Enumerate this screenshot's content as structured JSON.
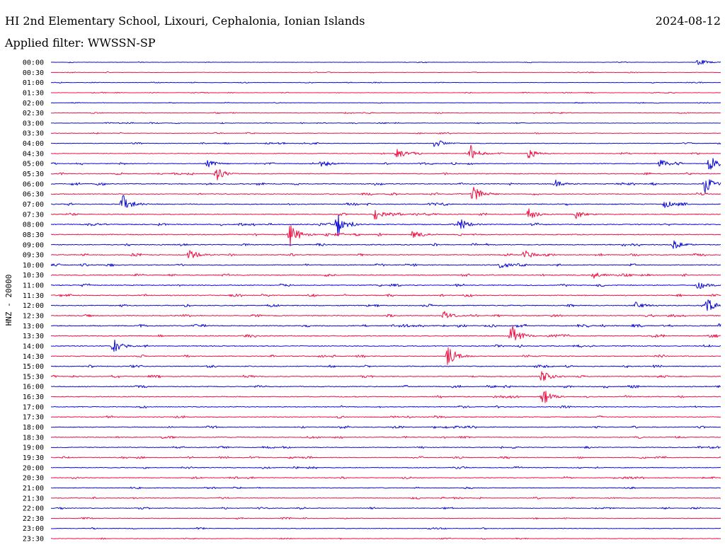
{
  "header": {
    "station": "HI 2nd Elementary School, Lixouri, Cephalonia, Ionian Islands",
    "date": "2024-08-12",
    "filter": "Applied filter: WWSSN-SP"
  },
  "colors": {
    "trace_a": "#0b0bd4",
    "trace_b": "#ee1144",
    "text": "#000000",
    "background": "#ffffff"
  },
  "chart_data": {
    "type": "helicorder",
    "channel_label": "HNZ - 20000",
    "row_interval_minutes": 30,
    "rows": [
      "00:00",
      "00:30",
      "01:00",
      "01:30",
      "02:00",
      "02:30",
      "03:00",
      "03:30",
      "04:00",
      "04:30",
      "05:00",
      "05:30",
      "06:00",
      "06:30",
      "07:00",
      "07:30",
      "08:00",
      "08:30",
      "09:00",
      "09:30",
      "10:00",
      "10:30",
      "11:00",
      "11:30",
      "12:00",
      "12:30",
      "13:00",
      "13:30",
      "14:00",
      "14:30",
      "15:00",
      "15:30",
      "16:00",
      "16:30",
      "17:00",
      "17:30",
      "18:00",
      "18:30",
      "19:00",
      "19:30",
      "20:00",
      "20:30",
      "21:00",
      "21:30",
      "22:00",
      "22:30",
      "23:00",
      "23:30"
    ],
    "series_colors": [
      "#0b0bd4",
      "#ee1144"
    ],
    "noise_level": [
      0.25,
      0.25,
      0.25,
      0.25,
      0.25,
      0.3,
      0.3,
      0.35,
      0.4,
      0.45,
      0.5,
      0.55,
      0.6,
      0.55,
      0.6,
      0.6,
      0.65,
      0.65,
      0.6,
      0.6,
      0.6,
      0.6,
      0.6,
      0.6,
      0.6,
      0.6,
      0.65,
      0.65,
      0.6,
      0.6,
      0.6,
      0.6,
      0.6,
      0.6,
      0.55,
      0.55,
      0.55,
      0.55,
      0.5,
      0.5,
      0.5,
      0.5,
      0.45,
      0.45,
      0.45,
      0.4,
      0.4,
      0.35
    ],
    "events": [
      {
        "row": 0,
        "minute": 29.0,
        "amplitude": 0.8
      },
      {
        "row": 8,
        "minute": 17.2,
        "amplitude": 1.1
      },
      {
        "row": 9,
        "minute": 15.5,
        "amplitude": 1.2
      },
      {
        "row": 9,
        "minute": 18.8,
        "amplitude": 1.6
      },
      {
        "row": 9,
        "minute": 21.4,
        "amplitude": 1.2
      },
      {
        "row": 10,
        "minute": 12.1,
        "amplitude": 0.9
      },
      {
        "row": 10,
        "minute": 7.0,
        "amplitude": 0.8
      },
      {
        "row": 10,
        "minute": 27.3,
        "amplitude": 1.0
      },
      {
        "row": 10,
        "minute": 29.5,
        "amplitude": 1.6
      },
      {
        "row": 11,
        "minute": 7.4,
        "amplitude": 1.2
      },
      {
        "row": 12,
        "minute": 22.6,
        "amplitude": 0.8
      },
      {
        "row": 12,
        "minute": 29.3,
        "amplitude": 1.8
      },
      {
        "row": 13,
        "minute": 18.9,
        "amplitude": 1.4
      },
      {
        "row": 14,
        "minute": 3.2,
        "amplitude": 2.0
      },
      {
        "row": 14,
        "minute": 27.5,
        "amplitude": 0.8
      },
      {
        "row": 15,
        "minute": 14.5,
        "amplitude": 1.1
      },
      {
        "row": 15,
        "minute": 21.4,
        "amplitude": 1.2
      },
      {
        "row": 15,
        "minute": 23.5,
        "amplitude": 0.9
      },
      {
        "row": 16,
        "minute": 12.8,
        "amplitude": 2.6
      },
      {
        "row": 16,
        "minute": 18.3,
        "amplitude": 1.3
      },
      {
        "row": 17,
        "minute": 10.7,
        "amplitude": 2.6
      },
      {
        "row": 17,
        "minute": 16.2,
        "amplitude": 1.2
      },
      {
        "row": 18,
        "minute": 27.9,
        "amplitude": 1.1
      },
      {
        "row": 19,
        "minute": 6.2,
        "amplitude": 1.2
      },
      {
        "row": 19,
        "minute": 21.2,
        "amplitude": 1.0
      },
      {
        "row": 20,
        "minute": 20.1,
        "amplitude": 0.8
      },
      {
        "row": 21,
        "minute": 24.3,
        "amplitude": 0.7
      },
      {
        "row": 22,
        "minute": 29.0,
        "amplitude": 0.9
      },
      {
        "row": 24,
        "minute": 29.4,
        "amplitude": 1.3
      },
      {
        "row": 24,
        "minute": 26.2,
        "amplitude": 0.8
      },
      {
        "row": 25,
        "minute": 17.6,
        "amplitude": 0.9
      },
      {
        "row": 26,
        "minute": 30.0,
        "amplitude": 1.5
      },
      {
        "row": 27,
        "minute": 20.6,
        "amplitude": 2.8
      },
      {
        "row": 28,
        "minute": 2.8,
        "amplitude": 1.6
      },
      {
        "row": 29,
        "minute": 17.8,
        "amplitude": 2.3
      },
      {
        "row": 31,
        "minute": 22.0,
        "amplitude": 1.3
      },
      {
        "row": 33,
        "minute": 22.0,
        "amplitude": 1.5
      }
    ]
  }
}
